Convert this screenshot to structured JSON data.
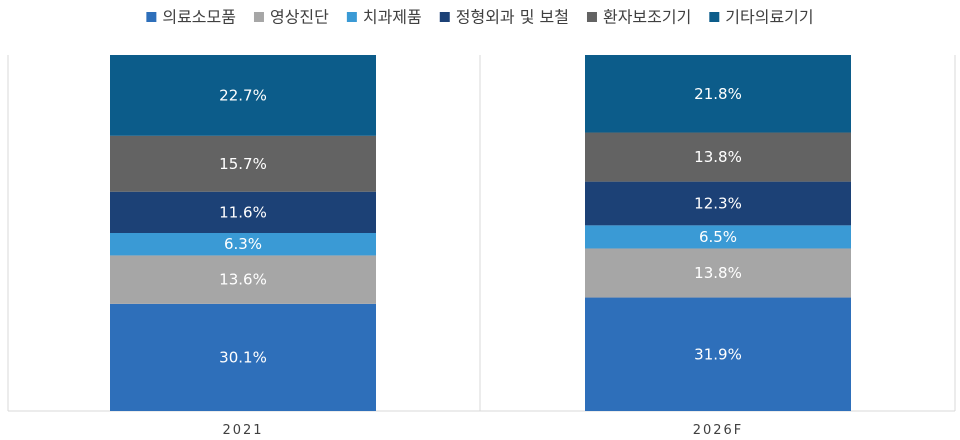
{
  "chart_data": {
    "type": "bar",
    "stacked": true,
    "percent": true,
    "title": "",
    "xlabel": "",
    "ylabel": "",
    "ylim": [
      0,
      100
    ],
    "grid": false,
    "legend_position": "top",
    "categories": [
      "2021",
      "2026F"
    ],
    "series": [
      {
        "name": "의료소모품",
        "color": "#2e6fba",
        "values": [
          30.1,
          31.9
        ],
        "labels": [
          "30.1%",
          "31.9%"
        ]
      },
      {
        "name": "영상진단",
        "color": "#a6a6a6",
        "values": [
          13.6,
          13.8
        ],
        "labels": [
          "13.6%",
          "13.8%"
        ]
      },
      {
        "name": "치과제품",
        "color": "#3a9ad5",
        "values": [
          6.3,
          6.5
        ],
        "labels": [
          "6.3%",
          "6.5%"
        ]
      },
      {
        "name": "정형외과 및 보철",
        "color": "#1c4176",
        "values": [
          11.6,
          12.3
        ],
        "labels": [
          "11.6%",
          "12.3%"
        ]
      },
      {
        "name": "환자보조기기",
        "color": "#636363",
        "values": [
          15.7,
          13.8
        ],
        "labels": [
          "15.7%",
          "13.8%"
        ]
      },
      {
        "name": "기타의료기기",
        "color": "#0c5c8a",
        "values": [
          22.7,
          21.8
        ],
        "labels": [
          "22.7%",
          "21.8%"
        ]
      }
    ]
  }
}
